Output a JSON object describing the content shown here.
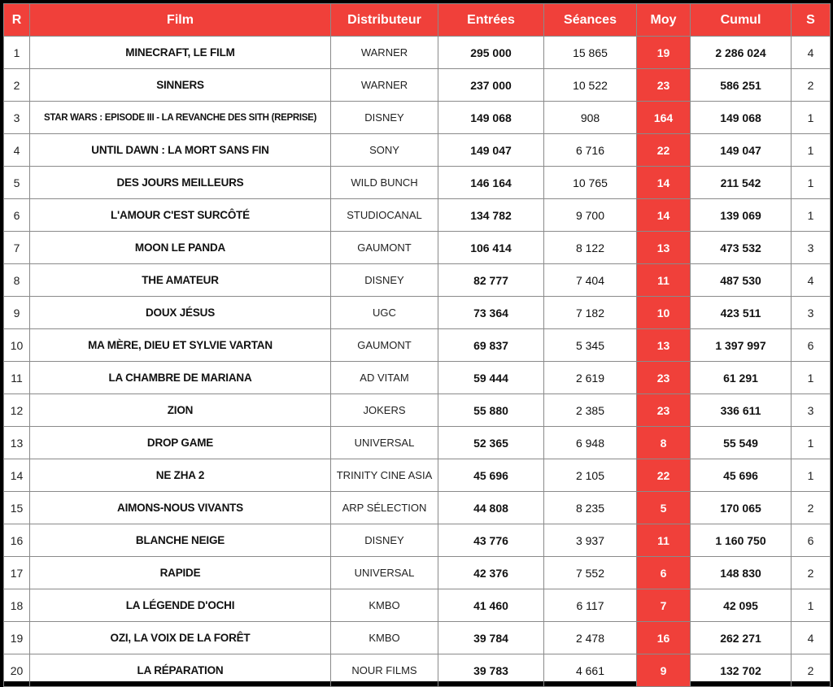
{
  "headers": {
    "rank": "R",
    "film": "Film",
    "distributor": "Distributeur",
    "entries": "Entrées",
    "screenings": "Séances",
    "average": "Moy",
    "cumul": "Cumul",
    "week": "S"
  },
  "rows": [
    {
      "rank": "1",
      "film": "MINECRAFT, LE FILM",
      "distributor": "WARNER",
      "entries": "295 000",
      "screenings": "15 865",
      "average": "19",
      "cumul": "2 286 024",
      "week": "4"
    },
    {
      "rank": "2",
      "film": "SINNERS",
      "distributor": "WARNER",
      "entries": "237 000",
      "screenings": "10 522",
      "average": "23",
      "cumul": "586 251",
      "week": "2"
    },
    {
      "rank": "3",
      "film": "STAR WARS : EPISODE III - LA REVANCHE DES SITH (REPRISE)",
      "distributor": "DISNEY",
      "entries": "149 068",
      "screenings": "908",
      "average": "164",
      "cumul": "149 068",
      "week": "1"
    },
    {
      "rank": "4",
      "film": "UNTIL DAWN : LA MORT SANS FIN",
      "distributor": "SONY",
      "entries": "149 047",
      "screenings": "6 716",
      "average": "22",
      "cumul": "149 047",
      "week": "1"
    },
    {
      "rank": "5",
      "film": "DES JOURS MEILLEURS",
      "distributor": "WILD BUNCH",
      "entries": "146 164",
      "screenings": "10 765",
      "average": "14",
      "cumul": "211 542",
      "week": "1"
    },
    {
      "rank": "6",
      "film": "L'AMOUR C'EST SURCÔTÉ",
      "distributor": "STUDIOCANAL",
      "entries": "134 782",
      "screenings": "9 700",
      "average": "14",
      "cumul": "139 069",
      "week": "1"
    },
    {
      "rank": "7",
      "film": "MOON LE PANDA",
      "distributor": "GAUMONT",
      "entries": "106 414",
      "screenings": "8 122",
      "average": "13",
      "cumul": "473 532",
      "week": "3"
    },
    {
      "rank": "8",
      "film": "THE AMATEUR",
      "distributor": "DISNEY",
      "entries": "82 777",
      "screenings": "7 404",
      "average": "11",
      "cumul": "487 530",
      "week": "4"
    },
    {
      "rank": "9",
      "film": "DOUX JÉSUS",
      "distributor": "UGC",
      "entries": "73 364",
      "screenings": "7 182",
      "average": "10",
      "cumul": "423 511",
      "week": "3"
    },
    {
      "rank": "10",
      "film": "MA MÈRE, DIEU ET SYLVIE VARTAN",
      "distributor": "GAUMONT",
      "entries": "69 837",
      "screenings": "5 345",
      "average": "13",
      "cumul": "1 397 997",
      "week": "6"
    },
    {
      "rank": "11",
      "film": "LA CHAMBRE DE MARIANA",
      "distributor": "AD VITAM",
      "entries": "59 444",
      "screenings": "2 619",
      "average": "23",
      "cumul": "61 291",
      "week": "1"
    },
    {
      "rank": "12",
      "film": "ZION",
      "distributor": "JOKERS",
      "entries": "55 880",
      "screenings": "2 385",
      "average": "23",
      "cumul": "336 611",
      "week": "3"
    },
    {
      "rank": "13",
      "film": "DROP GAME",
      "distributor": "UNIVERSAL",
      "entries": "52 365",
      "screenings": "6 948",
      "average": "8",
      "cumul": "55 549",
      "week": "1"
    },
    {
      "rank": "14",
      "film": "NE ZHA 2",
      "distributor": "TRINITY CINE ASIA",
      "entries": "45 696",
      "screenings": "2 105",
      "average": "22",
      "cumul": "45 696",
      "week": "1"
    },
    {
      "rank": "15",
      "film": "AIMONS-NOUS VIVANTS",
      "distributor": "ARP SÉLECTION",
      "entries": "44 808",
      "screenings": "8 235",
      "average": "5",
      "cumul": "170 065",
      "week": "2"
    },
    {
      "rank": "16",
      "film": "BLANCHE NEIGE",
      "distributor": "DISNEY",
      "entries": "43 776",
      "screenings": "3 937",
      "average": "11",
      "cumul": "1 160 750",
      "week": "6"
    },
    {
      "rank": "17",
      "film": "RAPIDE",
      "distributor": "UNIVERSAL",
      "entries": "42 376",
      "screenings": "7 552",
      "average": "6",
      "cumul": "148 830",
      "week": "2"
    },
    {
      "rank": "18",
      "film": "LA LÉGENDE D'OCHI",
      "distributor": "KMBO",
      "entries": "41 460",
      "screenings": "6 117",
      "average": "7",
      "cumul": "42 095",
      "week": "1"
    },
    {
      "rank": "19",
      "film": "OZI, LA VOIX DE LA FORÊT",
      "distributor": "KMBO",
      "entries": "39 784",
      "screenings": "2 478",
      "average": "16",
      "cumul": "262 271",
      "week": "4"
    },
    {
      "rank": "20",
      "film": "LA RÉPARATION",
      "distributor": "NOUR FILMS",
      "entries": "39 783",
      "screenings": "4 661",
      "average": "9",
      "cumul": "132 702",
      "week": "2"
    }
  ],
  "colors": {
    "accent": "#f0403a",
    "border": "#8a8a8a",
    "frame": "#000000"
  }
}
